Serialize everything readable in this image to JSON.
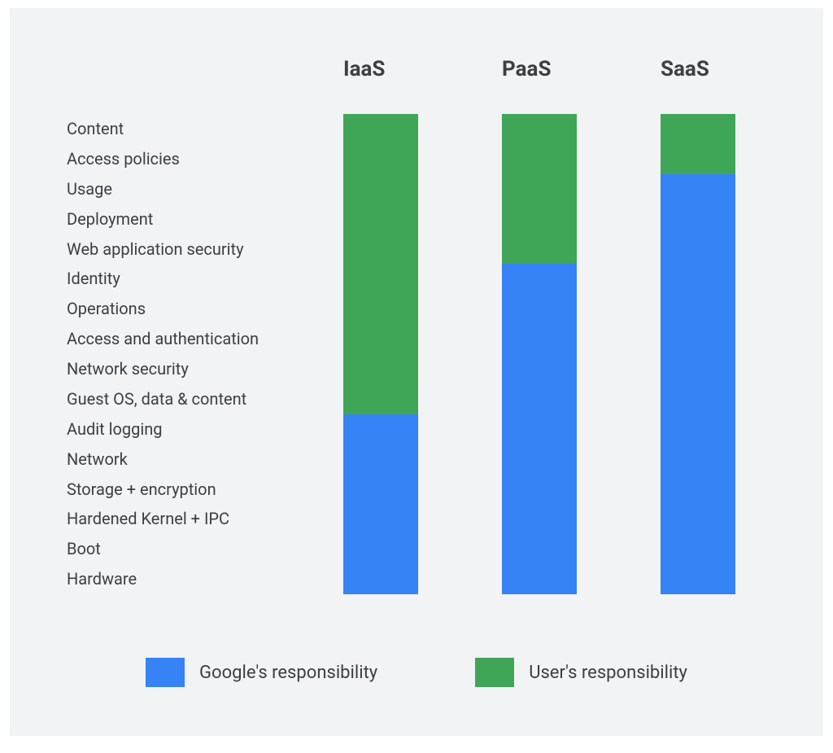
{
  "chart": {
    "type": "stacked-bar",
    "background_color": "#f1f3f4",
    "text_color": "#3c4043",
    "header_fontsize": 26,
    "label_fontsize": 20,
    "legend_fontsize": 22,
    "colors": {
      "google": "#3583f4",
      "user": "#3fa658"
    },
    "layers": [
      "Content",
      "Access policies",
      "Usage",
      "Deployment",
      "Web application security",
      "Identity",
      "Operations",
      "Access and authentication",
      "Network security",
      "Guest OS, data & content",
      "Audit logging",
      "Network",
      "Storage + encryption",
      "Hardened Kernel + IPC",
      "Boot",
      "Hardware"
    ],
    "columns": [
      {
        "label": "IaaS",
        "user_layers": 10,
        "google_layers": 6
      },
      {
        "label": "PaaS",
        "user_layers": 5,
        "google_layers": 11
      },
      {
        "label": "SaaS",
        "user_layers": 2,
        "google_layers": 14
      }
    ],
    "legend": [
      {
        "key": "google",
        "label": "Google's responsibility"
      },
      {
        "key": "user",
        "label": "User's responsibility"
      }
    ]
  }
}
